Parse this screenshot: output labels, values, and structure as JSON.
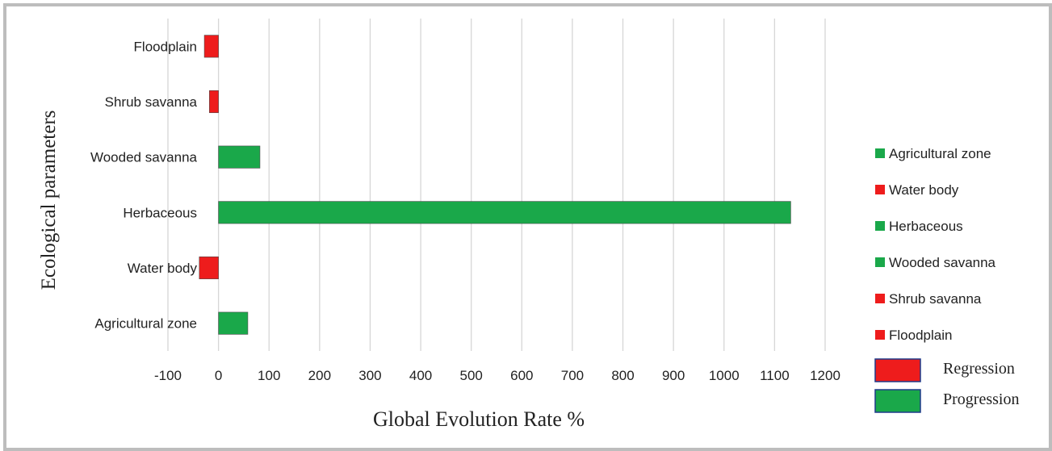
{
  "chart_data": {
    "type": "bar",
    "orientation": "horizontal",
    "categories": [
      "Agricultural zone",
      "Water body",
      "Herbaceous",
      "Wooded savanna",
      "Shrub savanna",
      "Floodplain"
    ],
    "values": [
      58,
      -38,
      1132,
      82,
      -18,
      -28
    ],
    "bar_colors": [
      "#1aa84a",
      "#ee1c1c",
      "#1aa84a",
      "#1aa84a",
      "#ee1c1c",
      "#ee1c1c"
    ],
    "xlabel": "Global Evolution Rate %",
    "ylabel": "Ecological parameters",
    "xlim": [
      -100,
      1200
    ],
    "xticks": [
      -100,
      0,
      100,
      200,
      300,
      400,
      500,
      600,
      700,
      800,
      900,
      1000,
      1100,
      1200
    ],
    "grid": "vertical",
    "legend_position": "right",
    "legend": [
      {
        "label": "Agricultural zone",
        "color": "#1aa84a"
      },
      {
        "label": "Water body",
        "color": "#ee1c1c"
      },
      {
        "label": "Herbaceous",
        "color": "#1aa84a"
      },
      {
        "label": "Wooded savanna",
        "color": "#1aa84a"
      },
      {
        "label": "Shrub savanna",
        "color": "#ee1c1c"
      },
      {
        "label": "Floodplain",
        "color": "#ee1c1c"
      }
    ],
    "key": [
      {
        "label": "Regression",
        "color": "#ee1c1c"
      },
      {
        "label": "Progression",
        "color": "#1aa84a"
      }
    ]
  }
}
